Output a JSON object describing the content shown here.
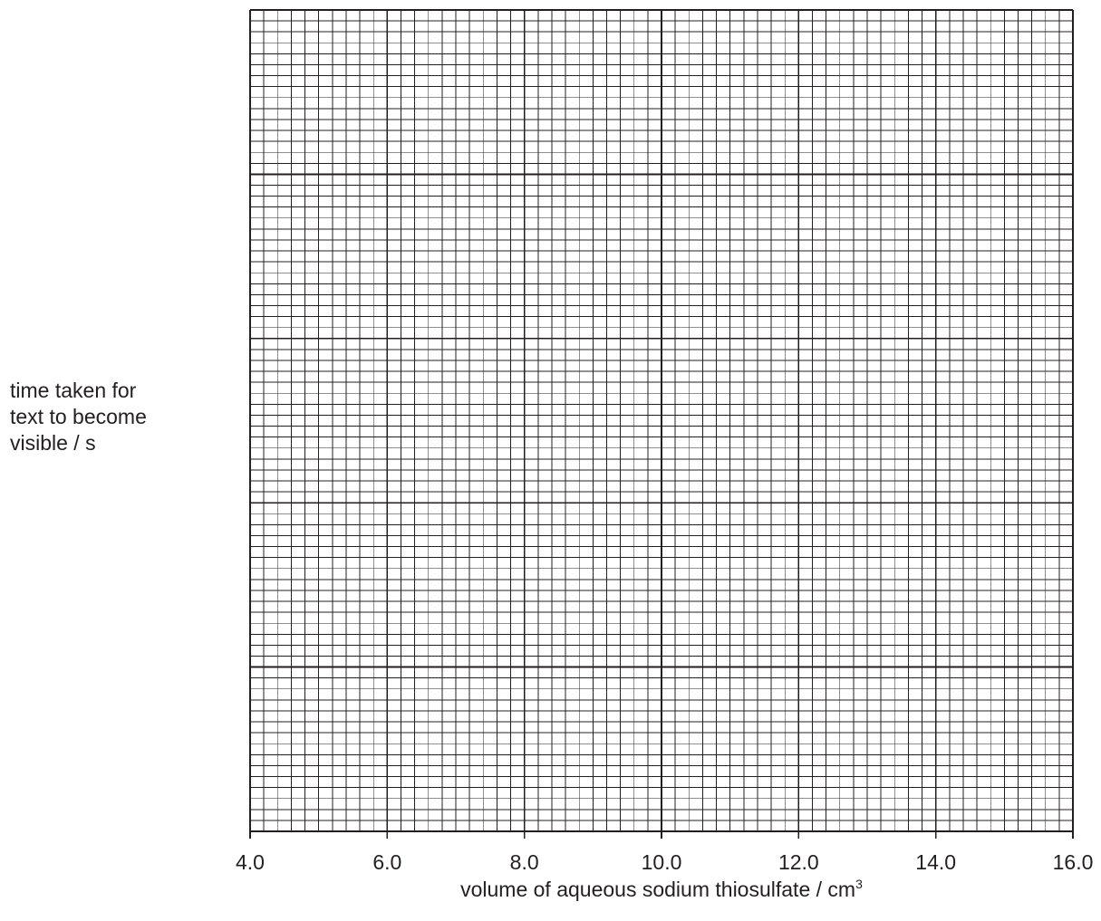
{
  "chart_data": {
    "type": "scatter",
    "title": "",
    "xlabel": {
      "text": "volume of aqueous sodium thiosulfate",
      "separator": " / ",
      "unit": "cm",
      "unit_superscript": "3"
    },
    "ylabel": {
      "lines": [
        "time taken for",
        "text to become",
        "visible / s"
      ]
    },
    "xlim": [
      4.0,
      16.0
    ],
    "x_ticks": [
      4.0,
      6.0,
      8.0,
      10.0,
      12.0,
      14.0,
      16.0
    ],
    "x_tick_labels": [
      "4.0",
      "6.0",
      "8.0",
      "10.0",
      "12.0",
      "14.0",
      "16.0"
    ],
    "x_minor_step": 0.2,
    "y_major_divisions": 5,
    "y_minor_per_major": 15,
    "y_tick_labels": [],
    "grid": true,
    "series": [],
    "colors": {
      "grid_major": "#231f20",
      "grid_minor": "#231f20",
      "text": "#231f20"
    }
  }
}
